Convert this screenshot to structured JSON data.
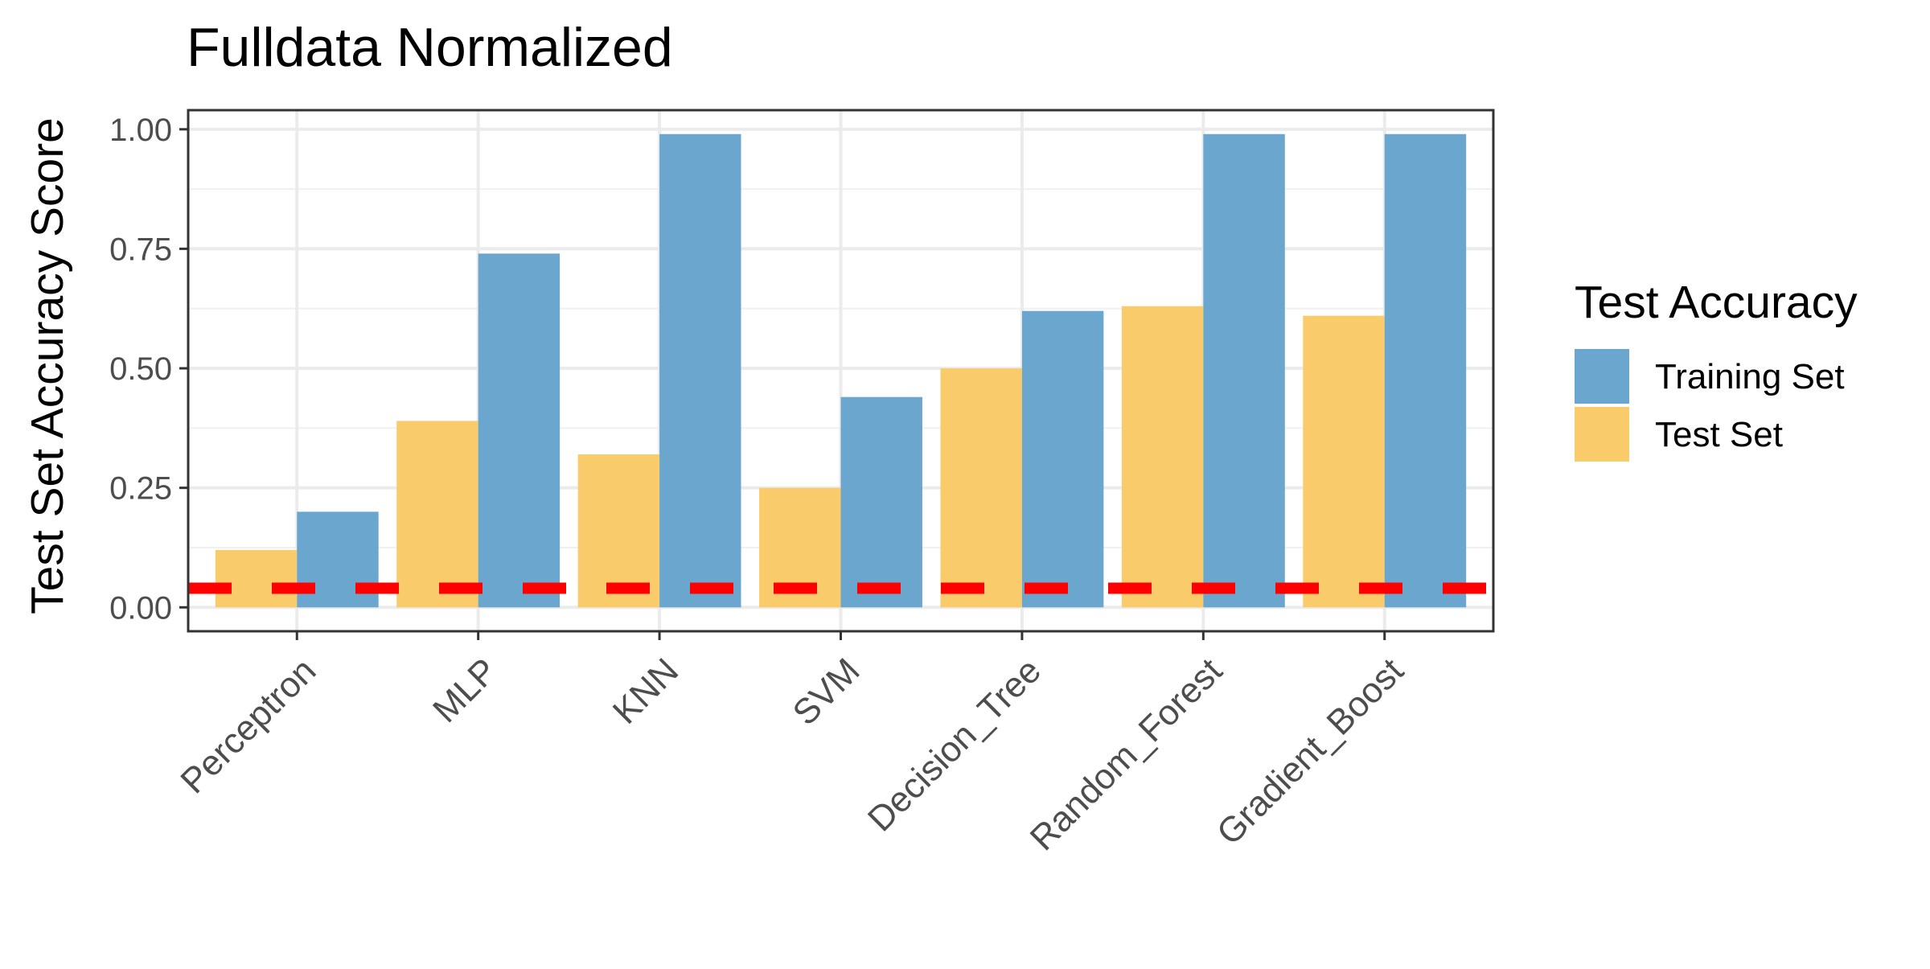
{
  "chart_data": {
    "type": "bar",
    "title": "Fulldata Normalized",
    "xlabel": "",
    "ylabel": "Test Set Accuracy Score",
    "ylim": [
      -0.05,
      1.04
    ],
    "yticks": [
      "0.00",
      "0.25",
      "0.50",
      "0.75",
      "1.00"
    ],
    "ytick_values": [
      0,
      0.25,
      0.5,
      0.75,
      1.0
    ],
    "categories": [
      "Perceptron",
      "MLP",
      "KNN",
      "SVM",
      "Decision_Tree",
      "Random_Forest",
      "Gradient_Boost"
    ],
    "series": [
      {
        "name": "Test Set",
        "color": "#F9CB6A",
        "values": [
          0.12,
          0.39,
          0.32,
          0.25,
          0.5,
          0.63,
          0.61
        ]
      },
      {
        "name": "Training Set",
        "color": "#6BA6CF",
        "values": [
          0.2,
          0.74,
          0.99,
          0.44,
          0.62,
          0.99,
          0.99
        ]
      }
    ],
    "reference_line": {
      "value": 0.04,
      "color": "#FF0000",
      "style": "dashed"
    },
    "legend": {
      "title": "Test Accuracy",
      "placement": "right",
      "entries": [
        {
          "label": "Training Set",
          "color": "#6BA6CF"
        },
        {
          "label": "Test Set",
          "color": "#F9CB6A"
        }
      ]
    },
    "grid": true
  }
}
